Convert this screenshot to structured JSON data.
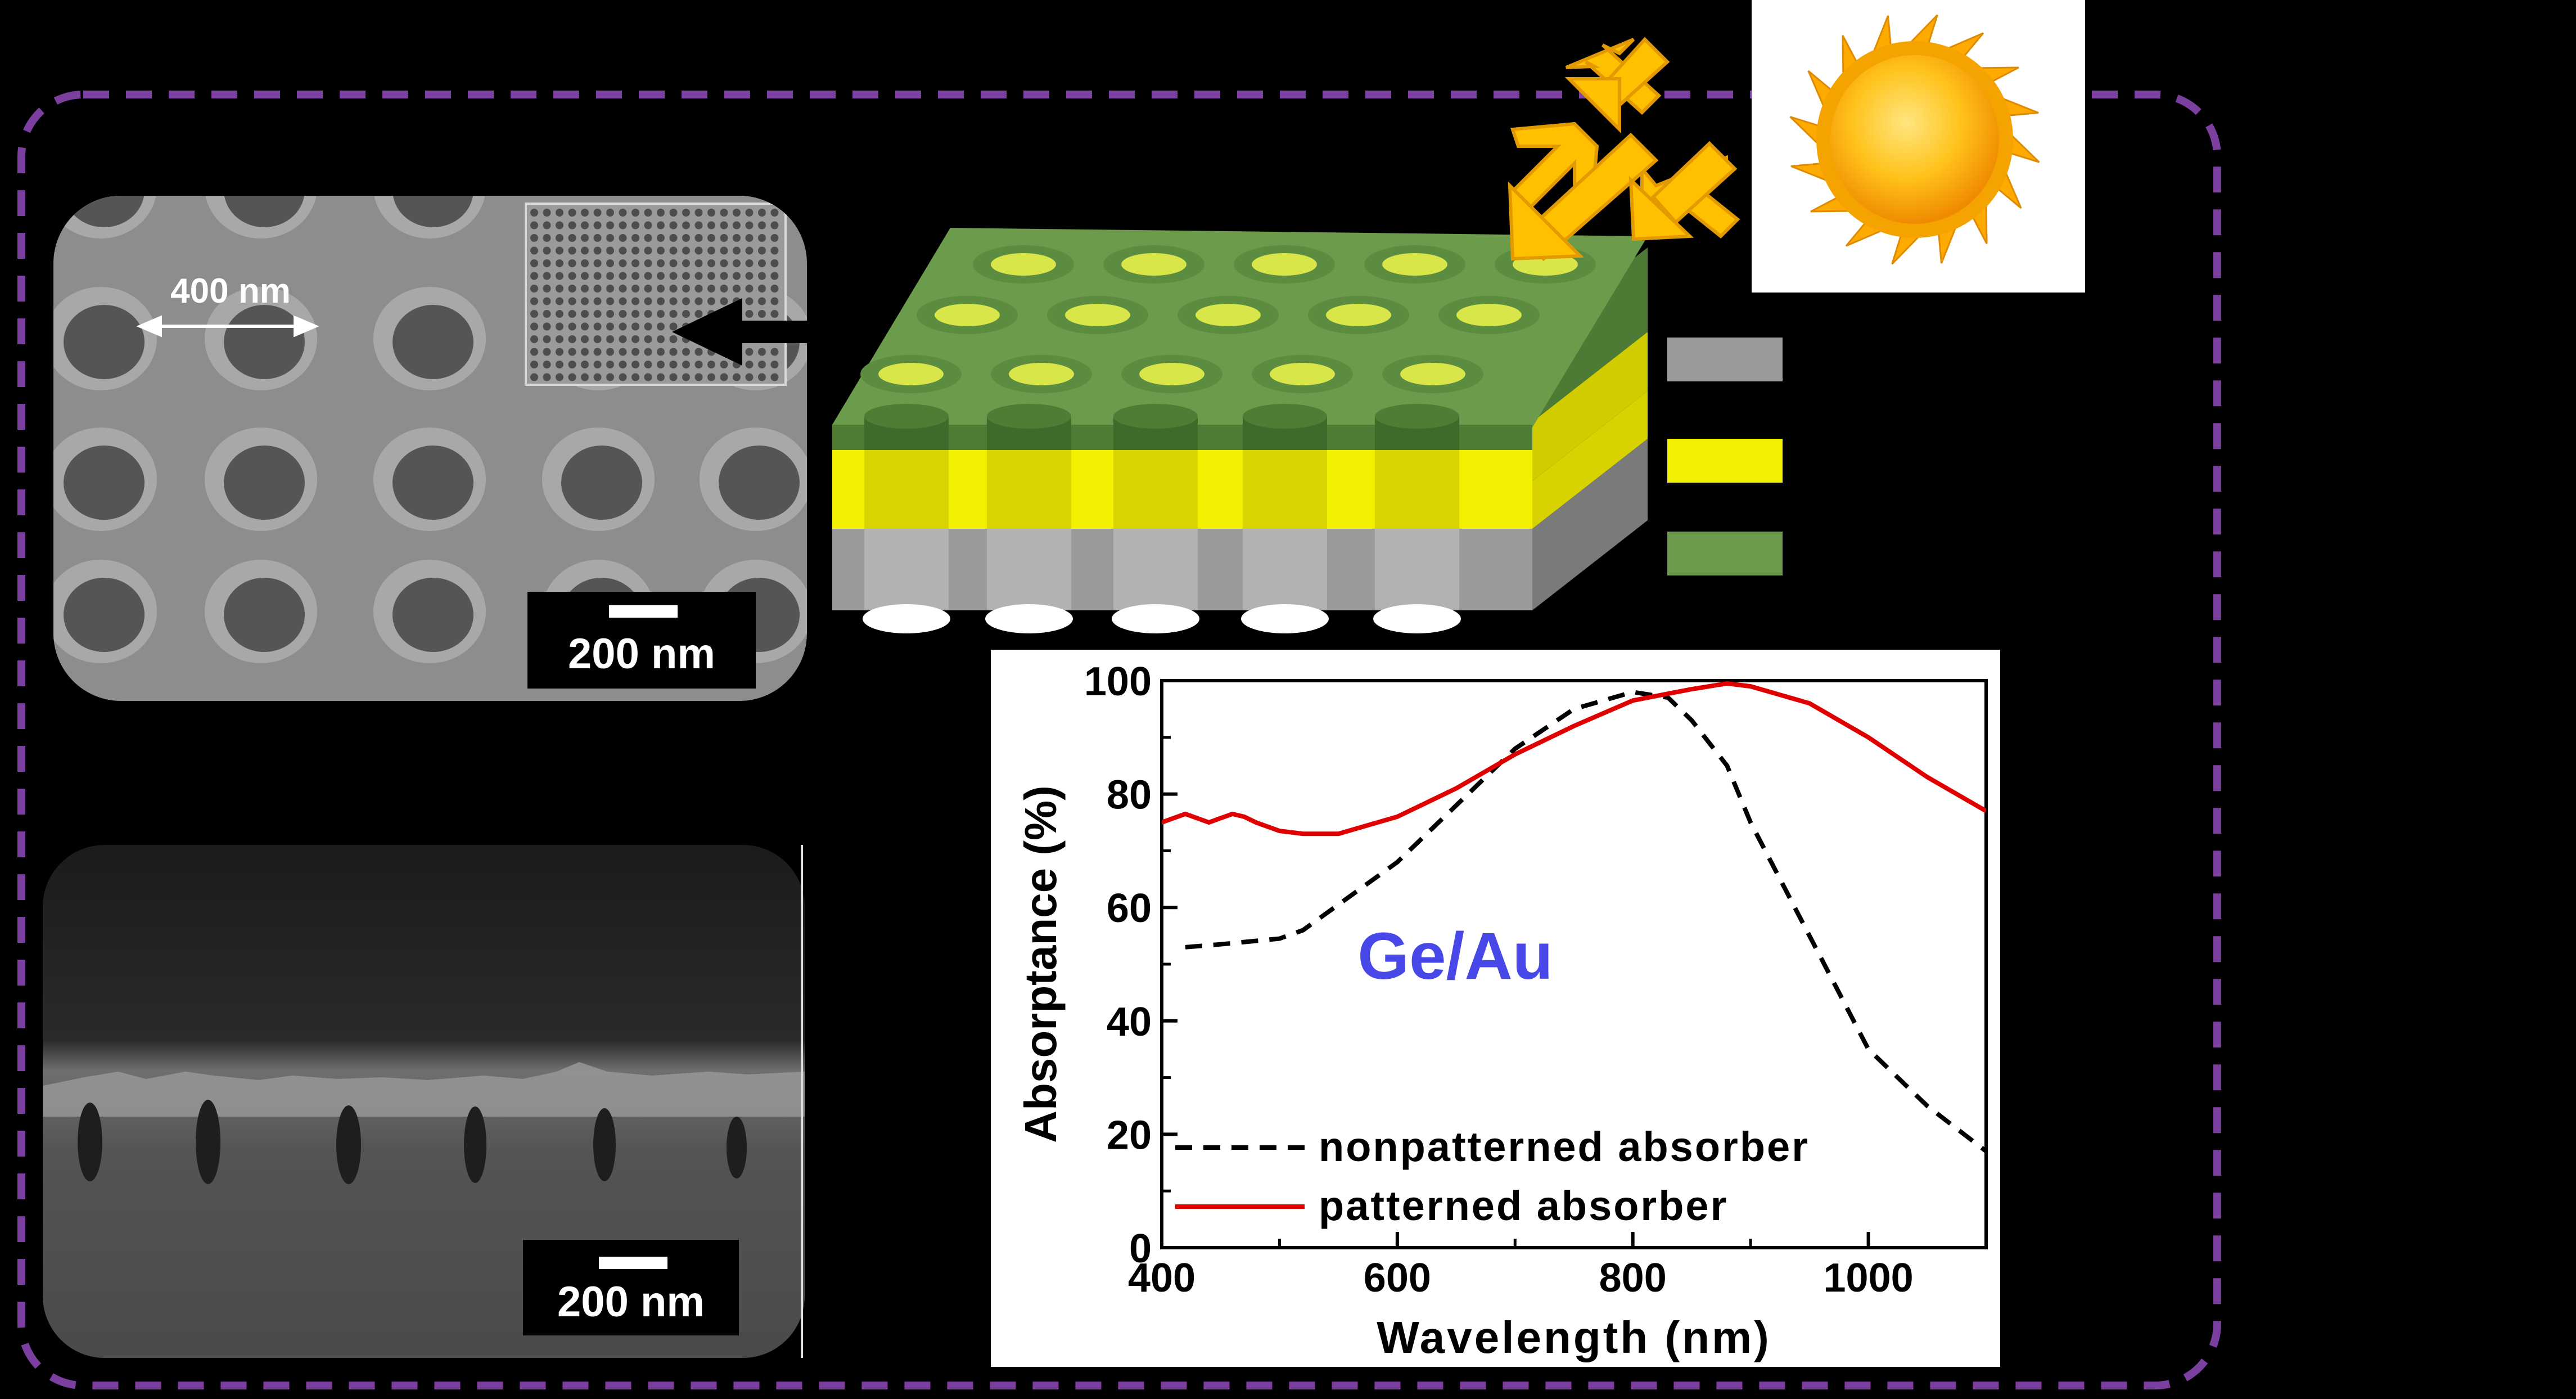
{
  "sem_top": {
    "dim_label": "400 nm",
    "scale_label": "200 nm"
  },
  "sem_cross": {
    "scale_label": "200 nm"
  },
  "material_label": "Ge/Au",
  "colors": {
    "frame_border": "#7b3fa0",
    "grey_layer": "#9a9a9a",
    "yellow_layer": "#f2ef00",
    "green_layer": "#6b9b4b",
    "sun": "#ffb400",
    "arrows": "#ffc000",
    "patterned": "#e00000",
    "nonpatterned": "#000000",
    "annotation": "#4040e0"
  },
  "chart_data": {
    "type": "line",
    "xlabel": "Wavelength (nm)",
    "ylabel": "Absorptance (%)",
    "xlim": [
      400,
      1100
    ],
    "ylim": [
      0,
      100
    ],
    "xticks": [
      400,
      600,
      800,
      1000
    ],
    "yticks": [
      0,
      20,
      40,
      60,
      80,
      100
    ],
    "grid": false,
    "legend_position": "bottom-left",
    "series": [
      {
        "name": "nonpatterned absorber",
        "style": "dashed",
        "color": "#000000",
        "x": [
          420,
          450,
          500,
          520,
          560,
          600,
          650,
          700,
          750,
          800,
          830,
          850,
          880,
          900,
          950,
          1000,
          1050,
          1100
        ],
        "y": [
          53,
          53.5,
          54.5,
          56,
          62,
          68,
          78,
          88,
          95,
          98,
          97,
          93,
          85,
          75,
          55,
          35,
          25,
          17
        ]
      },
      {
        "name": "patterned absorber",
        "style": "solid",
        "color": "#e00000",
        "x": [
          400,
          420,
          440,
          460,
          470,
          480,
          500,
          520,
          550,
          600,
          650,
          700,
          750,
          800,
          850,
          880,
          900,
          950,
          1000,
          1050,
          1100
        ],
        "y": [
          75,
          76.5,
          75,
          76.5,
          76,
          75,
          73.5,
          73,
          73,
          76,
          81,
          87,
          92,
          96.5,
          98.5,
          99.5,
          99,
          96,
          90,
          83,
          77
        ]
      }
    ]
  }
}
